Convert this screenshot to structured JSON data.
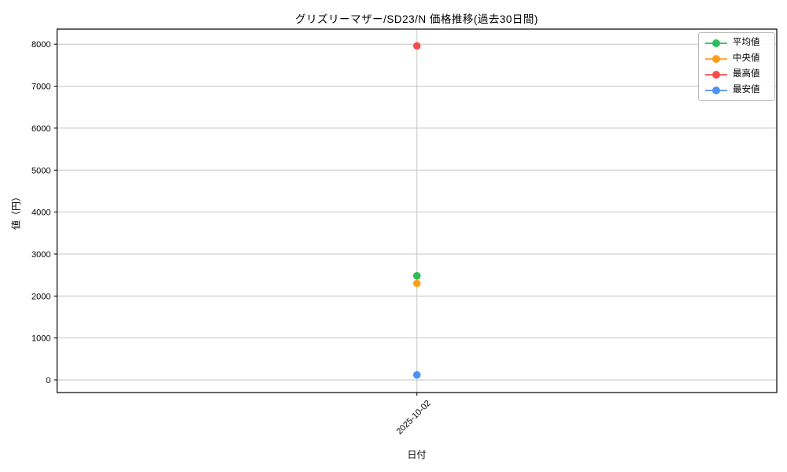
{
  "chart_data": {
    "type": "line",
    "title": "グリズリーマザー/SD23/N 価格推移(過去30日間)",
    "xlabel": "日付",
    "ylabel": "値（円）",
    "x": [
      "2025-10-02"
    ],
    "series": [
      {
        "name": "平均値",
        "color": "#2ebc5c",
        "values": [
          2480
        ]
      },
      {
        "name": "中央値",
        "color": "#ffa019",
        "values": [
          2300
        ]
      },
      {
        "name": "最高値",
        "color": "#f94d4d",
        "values": [
          7960
        ]
      },
      {
        "name": "最安値",
        "color": "#4b93f2",
        "values": [
          120
        ]
      }
    ],
    "yticks": [
      0,
      1000,
      2000,
      3000,
      4000,
      5000,
      6000,
      7000,
      8000
    ],
    "ylim": [
      -300,
      8360
    ],
    "grid": true,
    "legend_position": "upper right",
    "colors": {
      "grid": "#c6c6c6",
      "spine": "#000000",
      "background": "#ffffff"
    }
  }
}
